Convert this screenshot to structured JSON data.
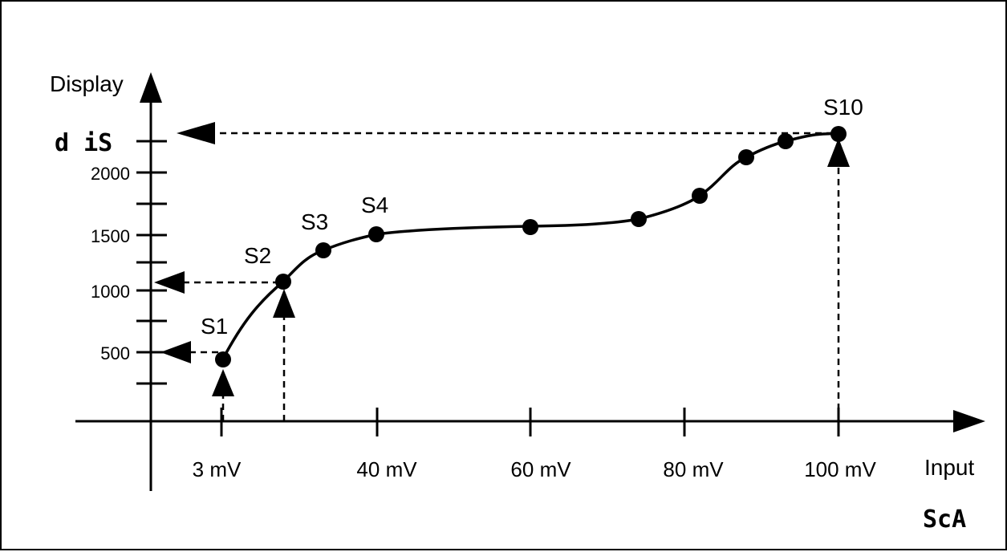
{
  "chart_data": {
    "type": "line",
    "y_axis_label": "Display",
    "x_axis_label": "Input",
    "y_display_param": "d iS",
    "x_scale_param": "ScA",
    "y_tick_labels": [
      "500",
      "1000",
      "1500",
      "2000"
    ],
    "x_tick_labels": [
      "3 mV",
      "40 mV",
      "60 mV",
      "80 mV",
      "100 mV"
    ],
    "point_labels": [
      "S1",
      "S2",
      "S3",
      "S4",
      "S10"
    ],
    "points": [
      {
        "name": "S1",
        "x": 3,
        "y": 450
      },
      {
        "name": "S2",
        "x": 32,
        "y": 1080
      },
      {
        "name": "S3",
        "x": 36,
        "y": 1360
      },
      {
        "name": "S4",
        "x": 40,
        "y": 1500
      },
      {
        "name": "",
        "x": 60,
        "y": 1560
      },
      {
        "name": "",
        "x": 74,
        "y": 1620
      },
      {
        "name": "",
        "x": 82,
        "y": 1810
      },
      {
        "name": "",
        "x": 88,
        "y": 2130
      },
      {
        "name": "",
        "x": 93,
        "y": 2260
      },
      {
        "name": "S10",
        "x": 100,
        "y": 2320
      }
    ]
  }
}
